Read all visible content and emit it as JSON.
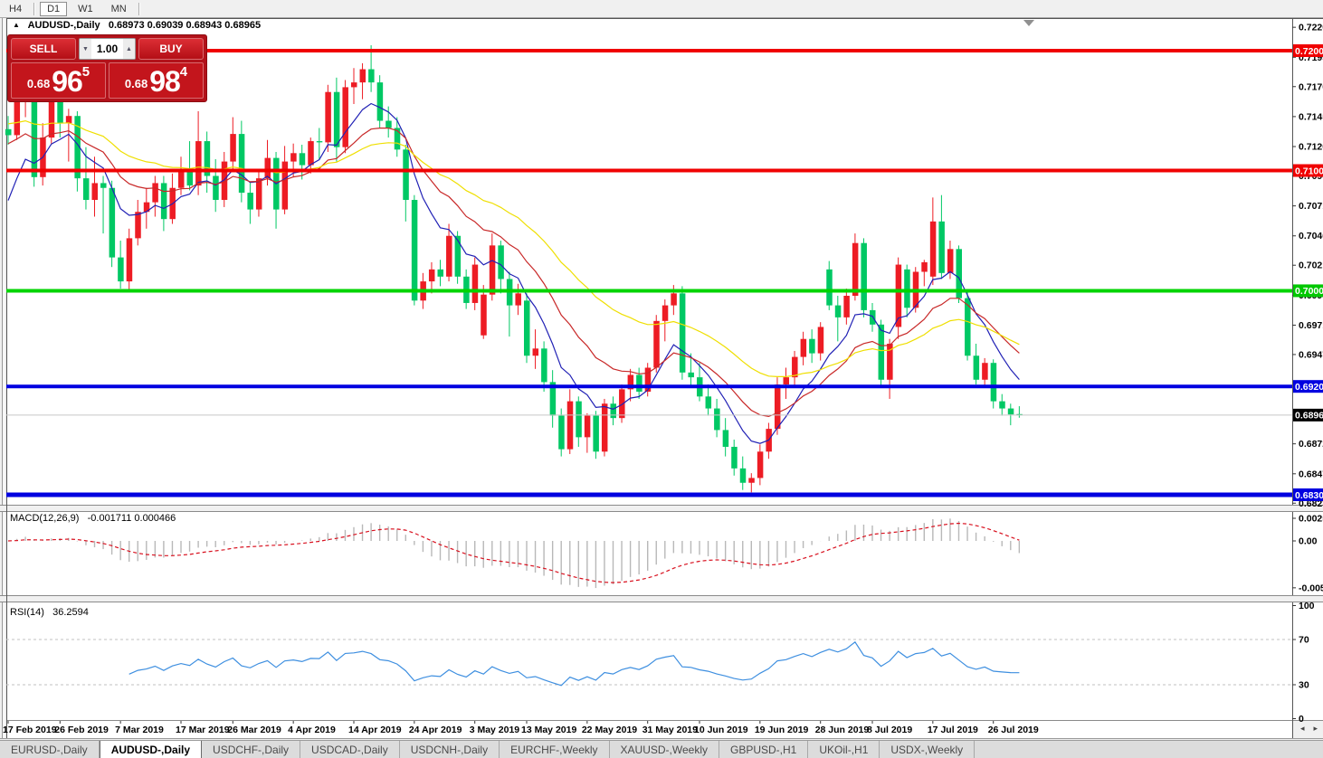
{
  "toolbar": {
    "timeframes": [
      {
        "label": "H4",
        "active": false
      },
      {
        "label": "D1",
        "active": true
      },
      {
        "label": "W1",
        "active": false
      },
      {
        "label": "MN",
        "active": false
      }
    ]
  },
  "header": {
    "title": "AUDUSD-,Daily",
    "ohlc_text": "0.68973 0.69039 0.68943 0.68965"
  },
  "trade": {
    "sell": {
      "label": "SELL",
      "price_small": "0.68",
      "price_big": "96",
      "price_sup": "5"
    },
    "buy": {
      "label": "BUY",
      "price_small": "0.68",
      "price_big": "98",
      "price_sup": "4"
    },
    "volume": "1.00"
  },
  "indicators": {
    "macd_name": "MACD(12,26,9)",
    "macd_values": "-0.001711 0.000466",
    "rsi_name": "RSI(14)",
    "rsi_value": "36.2594"
  },
  "tabs": [
    {
      "label": "EURUSD-,Daily",
      "active": false
    },
    {
      "label": "AUDUSD-,Daily",
      "active": true
    },
    {
      "label": "USDCHF-,Daily",
      "active": false
    },
    {
      "label": "USDCAD-,Daily",
      "active": false
    },
    {
      "label": "USDCNH-,Daily",
      "active": false
    },
    {
      "label": "EURCHF-,Weekly",
      "active": false
    },
    {
      "label": "XAUUSD-,Weekly",
      "active": false
    },
    {
      "label": "GBPUSD-,H1",
      "active": false
    },
    {
      "label": "UKOil-,H1",
      "active": false
    },
    {
      "label": "USDX-,Weekly",
      "active": false
    }
  ],
  "chart_data": {
    "type": "candlestick",
    "symbol": "AUDUSD-",
    "timeframe": "Daily",
    "title": "AUDUSD-,Daily",
    "current_bar": {
      "open": "0.68973",
      "high": "0.69039",
      "low": "0.68943",
      "close": "0.68965"
    },
    "ylim": [
      0.6823,
      0.722
    ],
    "candle_colors": {
      "bull": "#ED1C24",
      "bear": "#00C864"
    },
    "candles": [
      [
        0.7135,
        0.7146,
        0.7122,
        0.713
      ],
      [
        0.713,
        0.7168,
        0.7126,
        0.7158
      ],
      [
        0.7158,
        0.7172,
        0.7145,
        0.7166
      ],
      [
        0.7166,
        0.717,
        0.7087,
        0.7095
      ],
      [
        0.7095,
        0.714,
        0.7088,
        0.7128
      ],
      [
        0.7128,
        0.717,
        0.7123,
        0.7162
      ],
      [
        0.7162,
        0.7172,
        0.7128,
        0.714
      ],
      [
        0.714,
        0.7152,
        0.7108,
        0.7146
      ],
      [
        0.7146,
        0.715,
        0.7083,
        0.7094
      ],
      [
        0.7094,
        0.712,
        0.7068,
        0.7076
      ],
      [
        0.7076,
        0.7112,
        0.7062,
        0.709
      ],
      [
        0.709,
        0.7096,
        0.7048,
        0.7086
      ],
      [
        0.7086,
        0.7092,
        0.702,
        0.7028
      ],
      [
        0.7028,
        0.7042,
        0.7002,
        0.7008
      ],
      [
        0.7008,
        0.7052,
        0.7,
        0.7044
      ],
      [
        0.7044,
        0.7076,
        0.7038,
        0.7066
      ],
      [
        0.7066,
        0.7086,
        0.7052,
        0.7074
      ],
      [
        0.7074,
        0.7096,
        0.7062,
        0.709
      ],
      [
        0.709,
        0.7096,
        0.705,
        0.706
      ],
      [
        0.706,
        0.7098,
        0.7056,
        0.7086
      ],
      [
        0.7086,
        0.7112,
        0.708,
        0.71
      ],
      [
        0.71,
        0.7125,
        0.7084,
        0.7088
      ],
      [
        0.7088,
        0.715,
        0.708,
        0.7125
      ],
      [
        0.7125,
        0.7133,
        0.7082,
        0.7096
      ],
      [
        0.7096,
        0.711,
        0.7066,
        0.7076
      ],
      [
        0.7076,
        0.7116,
        0.707,
        0.7108
      ],
      [
        0.7108,
        0.7145,
        0.7102,
        0.7131
      ],
      [
        0.7131,
        0.7142,
        0.7074,
        0.7082
      ],
      [
        0.7082,
        0.709,
        0.7056,
        0.7068
      ],
      [
        0.7068,
        0.71,
        0.7062,
        0.7094
      ],
      [
        0.7094,
        0.7126,
        0.7088,
        0.7111
      ],
      [
        0.7111,
        0.7116,
        0.7052,
        0.7068
      ],
      [
        0.7068,
        0.7121,
        0.7064,
        0.7108
      ],
      [
        0.7108,
        0.7123,
        0.7095,
        0.7115
      ],
      [
        0.7115,
        0.7122,
        0.7093,
        0.7105
      ],
      [
        0.7105,
        0.7128,
        0.7098,
        0.7125
      ],
      [
        0.7125,
        0.7136,
        0.711,
        0.7124
      ],
      [
        0.7124,
        0.7172,
        0.7116,
        0.7166
      ],
      [
        0.7166,
        0.7178,
        0.7108,
        0.712
      ],
      [
        0.712,
        0.7176,
        0.7115,
        0.717
      ],
      [
        0.717,
        0.7186,
        0.7156,
        0.7174
      ],
      [
        0.7174,
        0.719,
        0.716,
        0.7185
      ],
      [
        0.7185,
        0.7205,
        0.7166,
        0.7174
      ],
      [
        0.7174,
        0.718,
        0.7136,
        0.7142
      ],
      [
        0.7142,
        0.7154,
        0.7128,
        0.7136
      ],
      [
        0.7136,
        0.7145,
        0.7112,
        0.7118
      ],
      [
        0.7118,
        0.7122,
        0.7058,
        0.7076
      ],
      [
        0.7076,
        0.708,
        0.6988,
        0.6992
      ],
      [
        0.6992,
        0.7015,
        0.6985,
        0.7008
      ],
      [
        0.7008,
        0.7024,
        0.6998,
        0.7018
      ],
      [
        0.7018,
        0.7026,
        0.7004,
        0.7012
      ],
      [
        0.7012,
        0.7056,
        0.7008,
        0.7046
      ],
      [
        0.7046,
        0.705,
        0.7006,
        0.7012
      ],
      [
        0.7012,
        0.7018,
        0.6985,
        0.699
      ],
      [
        0.699,
        0.7028,
        0.6984,
        0.7022
      ],
      [
        0.6963,
        0.7005,
        0.696,
        0.6997
      ],
      [
        0.6997,
        0.7048,
        0.6992,
        0.7038
      ],
      [
        0.7038,
        0.7042,
        0.6998,
        0.701
      ],
      [
        0.701,
        0.7016,
        0.6962,
        0.6988
      ],
      [
        0.6988,
        0.7006,
        0.698,
        0.6998
      ],
      [
        0.6992,
        0.6998,
        0.694,
        0.6946
      ],
      [
        0.6946,
        0.6968,
        0.6935,
        0.6952
      ],
      [
        0.6952,
        0.6958,
        0.6916,
        0.6924
      ],
      [
        0.6924,
        0.6934,
        0.6886,
        0.6896
      ],
      [
        0.6896,
        0.6902,
        0.6862,
        0.6868
      ],
      [
        0.6868,
        0.6918,
        0.6864,
        0.6908
      ],
      [
        0.6908,
        0.6912,
        0.687,
        0.6878
      ],
      [
        0.6878,
        0.6898,
        0.6865,
        0.6896
      ],
      [
        0.6896,
        0.69,
        0.686,
        0.6866
      ],
      [
        0.6866,
        0.691,
        0.6862,
        0.6906
      ],
      [
        0.6906,
        0.6912,
        0.6888,
        0.6894
      ],
      [
        0.6894,
        0.6922,
        0.689,
        0.6918
      ],
      [
        0.6918,
        0.6935,
        0.6908,
        0.693
      ],
      [
        0.693,
        0.6936,
        0.691,
        0.6916
      ],
      [
        0.6916,
        0.694,
        0.6912,
        0.6936
      ],
      [
        0.6936,
        0.698,
        0.6932,
        0.6975
      ],
      [
        0.6975,
        0.6993,
        0.6958,
        0.6988
      ],
      [
        0.6988,
        0.7005,
        0.698,
        0.6998
      ],
      [
        0.6998,
        0.7004,
        0.6926,
        0.6932
      ],
      [
        0.6932,
        0.6948,
        0.692,
        0.6928
      ],
      [
        0.6928,
        0.694,
        0.6908,
        0.6912
      ],
      [
        0.6912,
        0.6922,
        0.6896,
        0.6902
      ],
      [
        0.6902,
        0.691,
        0.6878,
        0.6884
      ],
      [
        0.6884,
        0.6894,
        0.6862,
        0.687
      ],
      [
        0.687,
        0.6876,
        0.6846,
        0.6852
      ],
      [
        0.6852,
        0.6862,
        0.6834,
        0.684
      ],
      [
        0.684,
        0.6848,
        0.6832,
        0.6844
      ],
      [
        0.6844,
        0.6872,
        0.6838,
        0.6866
      ],
      [
        0.6866,
        0.689,
        0.686,
        0.6885
      ],
      [
        0.6885,
        0.6928,
        0.688,
        0.6922
      ],
      [
        0.6922,
        0.6936,
        0.691,
        0.6928
      ],
      [
        0.6928,
        0.695,
        0.692,
        0.6945
      ],
      [
        0.6945,
        0.6966,
        0.6938,
        0.696
      ],
      [
        0.696,
        0.6968,
        0.694,
        0.6948
      ],
      [
        0.6948,
        0.6974,
        0.6942,
        0.697
      ],
      [
        0.7018,
        0.7025,
        0.6984,
        0.6988
      ],
      [
        0.6988,
        0.6996,
        0.6958,
        0.6978
      ],
      [
        0.6978,
        0.7002,
        0.6972,
        0.6996
      ],
      [
        0.6996,
        0.7048,
        0.6992,
        0.704
      ],
      [
        0.704,
        0.7044,
        0.6978,
        0.6984
      ],
      [
        0.6984,
        0.699,
        0.6966,
        0.6972
      ],
      [
        0.6972,
        0.6976,
        0.692,
        0.6926
      ],
      [
        0.6926,
        0.696,
        0.691,
        0.6956
      ],
      [
        0.697,
        0.7028,
        0.696,
        0.7022
      ],
      [
        0.7018,
        0.7022,
        0.6978,
        0.6986
      ],
      [
        0.6986,
        0.702,
        0.6982,
        0.7016
      ],
      [
        0.7016,
        0.7026,
        0.7004,
        0.7024
      ],
      [
        0.7012,
        0.7078,
        0.7005,
        0.7058
      ],
      [
        0.7058,
        0.708,
        0.701,
        0.7015
      ],
      [
        0.7015,
        0.7042,
        0.701,
        0.7035
      ],
      [
        0.7035,
        0.7038,
        0.699,
        0.6994
      ],
      [
        0.6994,
        0.7,
        0.6942,
        0.6946
      ],
      [
        0.6946,
        0.6956,
        0.6922,
        0.6926
      ],
      [
        0.6926,
        0.6944,
        0.692,
        0.694
      ],
      [
        0.694,
        0.6943,
        0.6902,
        0.6908
      ],
      [
        0.6908,
        0.6914,
        0.6896,
        0.6902
      ],
      [
        0.6902,
        0.6906,
        0.6888,
        0.6897
      ],
      [
        0.68973,
        0.69039,
        0.68943,
        0.68965
      ]
    ],
    "date_labels": [
      {
        "label": "17 Feb 2019",
        "i": 0
      },
      {
        "label": "26 Feb 2019",
        "i": 6
      },
      {
        "label": "7 Mar 2019",
        "i": 13
      },
      {
        "label": "17 Mar 2019",
        "i": 20
      },
      {
        "label": "26 Mar 2019",
        "i": 26
      },
      {
        "label": "4 Apr 2019",
        "i": 33
      },
      {
        "label": "14 Apr 2019",
        "i": 40
      },
      {
        "label": "24 Apr 2019",
        "i": 47
      },
      {
        "label": "3 May 2019",
        "i": 54
      },
      {
        "label": "13 May 2019",
        "i": 60
      },
      {
        "label": "22 May 2019",
        "i": 67
      },
      {
        "label": "31 May 2019",
        "i": 74
      },
      {
        "label": "10 Jun 2019",
        "i": 80
      },
      {
        "label": "19 Jun 2019",
        "i": 87
      },
      {
        "label": "28 Jun 2019",
        "i": 94
      },
      {
        "label": "8 Jul 2019",
        "i": 100
      },
      {
        "label": "17 Jul 2019",
        "i": 107
      },
      {
        "label": "26 Jul 2019",
        "i": 114
      }
    ],
    "price_ticks": [
      "0.72200",
      "0.71950",
      "0.71705",
      "0.71455",
      "0.71205",
      "0.70960",
      "0.70710",
      "0.70460",
      "0.70215",
      "0.69965",
      "0.69715",
      "0.69470",
      "0.68725",
      "0.68475",
      "0.68230"
    ],
    "levels": [
      {
        "text": "0.72005",
        "price": 0.72005,
        "line_color": "#F00000",
        "line_width": 4,
        "bg": "#F00000"
      },
      {
        "text": "0.71005",
        "price": 0.71005,
        "line_color": "#F00000",
        "line_width": 4,
        "bg": "#F00000"
      },
      {
        "text": "0.70002",
        "price": 0.70002,
        "line_color": "#00D400",
        "line_width": 4,
        "bg": "#00C800"
      },
      {
        "text": "0.69204",
        "price": 0.69204,
        "line_color": "#0000E0",
        "line_width": 4,
        "bg": "#0000E0"
      },
      {
        "text": "0.68965",
        "price": 0.68965,
        "line_color": "#C8C8C8",
        "line_width": 1,
        "bg": "#000000"
      },
      {
        "text": "0.68300",
        "price": 0.683,
        "line_color": "#0000E0",
        "line_width": 5,
        "bg": "#0000E0"
      }
    ],
    "moving_averages": [
      {
        "name": "fast-ma",
        "period": 8,
        "seed": 0.706,
        "color": "#2121B5"
      },
      {
        "name": "mid-ma",
        "period": 17,
        "seed": 0.7122,
        "color": "#C82828"
      },
      {
        "name": "slow-ma",
        "period": 34,
        "seed": 0.714,
        "color": "#EFDF00"
      }
    ],
    "macd": {
      "fast": 12,
      "slow": 26,
      "signal": 9,
      "hist_color": "#B8B8B8",
      "signal_color": "#D8101E",
      "ticks": [
        {
          "text": "0.002522",
          "v": 0.002522
        },
        {
          "text": "0.00",
          "v": 0
        },
        {
          "text": "-0.00523",
          "v": -0.00523
        }
      ]
    },
    "rsi": {
      "period": 14,
      "color": "#3E8FE0",
      "levels": [
        70,
        30
      ],
      "ticks": [
        {
          "text": "100",
          "v": 100
        },
        {
          "text": "70",
          "v": 70
        },
        {
          "text": "30",
          "v": 30
        },
        {
          "text": "0",
          "v": 0
        }
      ]
    }
  }
}
